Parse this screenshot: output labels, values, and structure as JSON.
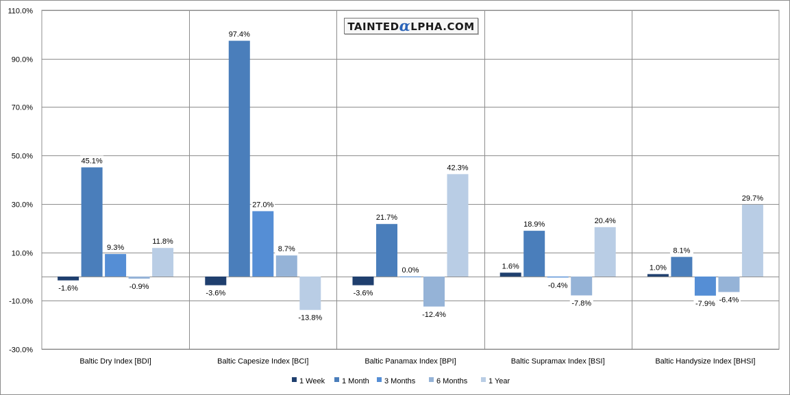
{
  "watermark": {
    "prefix": "TAINTED",
    "alpha": "α",
    "suffix": "LPHA.COM"
  },
  "chart_data": {
    "type": "bar",
    "title": "",
    "xlabel": "",
    "ylabel": "",
    "ylim": [
      -30,
      110
    ],
    "yticks": [
      "110.0%",
      "90.0%",
      "70.0%",
      "50.0%",
      "30.0%",
      "10.0%",
      "-10.0%",
      "-30.0%"
    ],
    "ytick_values": [
      110,
      90,
      70,
      50,
      30,
      10,
      -10,
      -30
    ],
    "grid": true,
    "legend_position": "bottom",
    "categories": [
      "Baltic Dry Index [BDI]",
      "Baltic Capesize Index [BCI]",
      "Baltic Panamax Index [BPI]",
      "Baltic Supramax Index [BSI]",
      "Baltic Handysize Index [BHSI]"
    ],
    "series": [
      {
        "name": "1 Week",
        "color": "#1f3f6e",
        "values": [
          -1.6,
          -3.6,
          -3.6,
          1.6,
          1.0
        ],
        "labels": [
          "-1.6%",
          "-3.6%",
          "-3.6%",
          "1.6%",
          "1.0%"
        ]
      },
      {
        "name": "1 Month",
        "color": "#4a7ebb",
        "values": [
          45.1,
          97.4,
          21.7,
          18.9,
          8.1
        ],
        "labels": [
          "45.1%",
          "97.4%",
          "21.7%",
          "18.9%",
          "8.1%"
        ]
      },
      {
        "name": "3 Months",
        "color": "#558ed5",
        "values": [
          9.3,
          27.0,
          0.0,
          -0.4,
          -7.9
        ],
        "labels": [
          "9.3%",
          "27.0%",
          "0.0%",
          "-0.4%",
          "-7.9%"
        ]
      },
      {
        "name": "6 Months",
        "color": "#95b3d7",
        "values": [
          -0.9,
          8.7,
          -12.4,
          -7.8,
          -6.4
        ],
        "labels": [
          "-0.9%",
          "8.7%",
          "-12.4%",
          "-7.8%",
          "-6.4%"
        ]
      },
      {
        "name": "1 Year",
        "color": "#b9cde5",
        "values": [
          11.8,
          -13.8,
          42.3,
          20.4,
          29.7
        ],
        "labels": [
          "11.8%",
          "-13.8%",
          "42.3%",
          "20.4%",
          "29.7%"
        ]
      }
    ]
  }
}
